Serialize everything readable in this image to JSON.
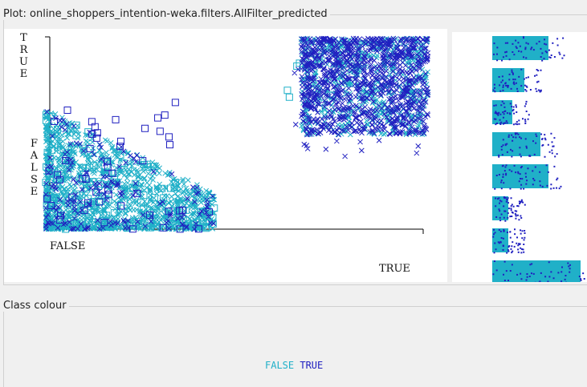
{
  "plot_panel": {
    "title": "Plot: online_shoppers_intention-weka.filters.AllFilter_predicted",
    "y_axis_labels": [
      "TRUE",
      "FALSE"
    ],
    "x_axis_labels": [
      "FALSE",
      "TRUE"
    ]
  },
  "class_colour": {
    "title": "Class colour",
    "legend": [
      {
        "label": "FALSE",
        "color": "#20b0c8"
      },
      {
        "label": "TRUE",
        "color": "#2020c0"
      }
    ]
  }
}
